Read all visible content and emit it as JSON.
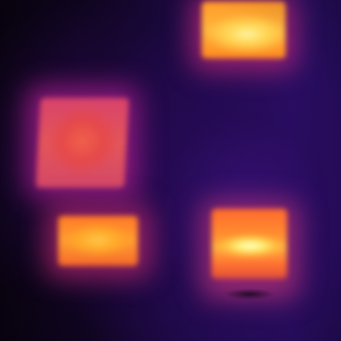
{
  "image": {
    "kind": "thermal-image",
    "palette": [
      "#0a0312",
      "#2a0f66",
      "#c0287a",
      "#ff7a26",
      "#ffb53a",
      "#fff3a0"
    ],
    "hotspots": [
      {
        "name": "top-right-window",
        "color": "#ffb53a"
      },
      {
        "name": "left-middle-window",
        "color": "#e3555a"
      },
      {
        "name": "left-lower-window",
        "color": "#ff9c30"
      },
      {
        "name": "right-lower-window",
        "color": "#fff07a"
      }
    ]
  }
}
